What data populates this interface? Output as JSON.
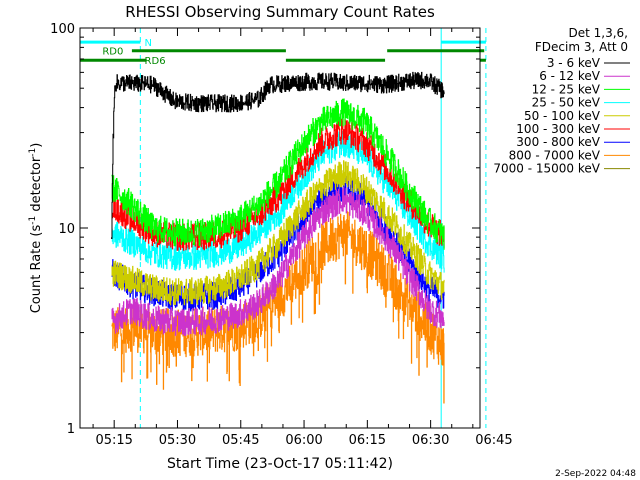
{
  "chart_data": {
    "type": "line",
    "title": "RHESSI Observing Summary Count Rates",
    "xlabel": "Start Time (23-Oct-17 05:11:42)",
    "ylabel_parts": [
      "Count Rate (s",
      "-1",
      " detector",
      "-1",
      ")"
    ],
    "x_range_minutes": [
      5.2,
      100.0
    ],
    "y_range": [
      1,
      100
    ],
    "y_scale": "log",
    "x_ticks": [
      {
        "minute": 13.3,
        "label": "05:15"
      },
      {
        "minute": 28.3,
        "label": "05:30"
      },
      {
        "minute": 43.3,
        "label": "05:45"
      },
      {
        "minute": 58.3,
        "label": "06:00"
      },
      {
        "minute": 73.3,
        "label": "06:15"
      },
      {
        "minute": 88.3,
        "label": "06:30"
      },
      {
        "minute": 103.3,
        "label": "06:45"
      }
    ],
    "y_ticks": [
      {
        "value": 1,
        "label": "1"
      },
      {
        "value": 10,
        "label": "10"
      },
      {
        "value": 100,
        "label": "100"
      }
    ],
    "legend_header": [
      "Det 1,3,6,",
      "FDecim 3, Att 0"
    ],
    "legend_position": "right",
    "series": [
      {
        "name": "3 - 6 keV",
        "color": "#000000",
        "x": [
          12.7,
          13.5,
          17.5,
          22.5,
          27.5,
          32.5,
          37.5,
          42.5,
          47.5,
          49.6,
          50,
          55,
          60,
          65,
          67,
          72.5,
          77.5,
          82.5,
          87.5,
          91.5
        ],
        "y": [
          9,
          53,
          53,
          52,
          43,
          42,
          42,
          42,
          44,
          50,
          52,
          53,
          54,
          54,
          53,
          53,
          52,
          54,
          55,
          48
        ]
      },
      {
        "name": "6 - 12 keV",
        "color": "#cc33cc",
        "x": [
          12.7,
          17.5,
          22.5,
          27.5,
          32.5,
          37.5,
          42.5,
          47.5,
          52.5,
          57.5,
          62.5,
          67.5,
          72.5,
          77.5,
          82.5,
          87.5,
          91.5
        ],
        "y": [
          3.4,
          3.9,
          3.5,
          3.4,
          3.4,
          3.5,
          3.7,
          4.2,
          5.5,
          8.5,
          12,
          14,
          12,
          9,
          6,
          4,
          3.5
        ]
      },
      {
        "name": "12 - 25 keV",
        "color": "#00ff00",
        "x": [
          12.7,
          17.5,
          22.5,
          27.5,
          32.5,
          37.5,
          42.5,
          47.5,
          52.5,
          57.5,
          62.5,
          67.5,
          72.5,
          77.5,
          82.5,
          87.5,
          91.5
        ],
        "y": [
          16,
          13,
          10,
          9.5,
          9.5,
          10,
          11,
          13,
          17,
          25,
          34,
          38,
          34,
          24,
          16,
          11,
          9
        ]
      },
      {
        "name": "25 - 50 keV",
        "color": "#00ffff",
        "x": [
          12.7,
          17.5,
          22.5,
          27.5,
          32.5,
          37.5,
          42.5,
          47.5,
          52.5,
          57.5,
          62.5,
          67.5,
          72.5,
          77.5,
          82.5,
          87.5,
          91.5
        ],
        "y": [
          9.5,
          8.5,
          7.5,
          7.2,
          7.2,
          7.5,
          8,
          9.5,
          12,
          17,
          23,
          27,
          23,
          17,
          12,
          8.5,
          7
        ]
      },
      {
        "name": "50 - 100 keV",
        "color": "#cccc00",
        "x": [
          12.7,
          17.5,
          22.5,
          27.5,
          32.5,
          37.5,
          42.5,
          47.5,
          52.5,
          57.5,
          62.5,
          67.5,
          72.5,
          77.5,
          82.5,
          87.5,
          91.5
        ],
        "y": [
          6,
          5.5,
          5,
          4.8,
          4.8,
          5,
          5.5,
          6.5,
          8.5,
          12,
          16,
          19,
          16,
          12,
          8.5,
          6,
          5
        ]
      },
      {
        "name": "100 - 300 keV",
        "color": "#ff0000",
        "x": [
          12.7,
          17.5,
          22.5,
          27.5,
          32.5,
          37.5,
          42.5,
          47.5,
          52.5,
          57.5,
          62.5,
          67.5,
          72.5,
          77.5,
          82.5,
          87.5,
          91.5
        ],
        "y": [
          13,
          11,
          9.5,
          9,
          9,
          9.2,
          9.8,
          11.5,
          14.5,
          20,
          27,
          31,
          27,
          20,
          14,
          10.5,
          9
        ]
      },
      {
        "name": "300 - 800 keV",
        "color": "#0000ff",
        "x": [
          12.7,
          17.5,
          22.5,
          27.5,
          32.5,
          37.5,
          42.5,
          47.5,
          52.5,
          57.5,
          62.5,
          67.5,
          72.5,
          77.5,
          82.5,
          87.5,
          91.5
        ],
        "y": [
          6,
          5.2,
          4.8,
          4.5,
          4.5,
          4.6,
          5,
          6,
          7.5,
          10.5,
          14,
          16,
          14,
          10,
          7,
          5,
          4.5
        ]
      },
      {
        "name": "800 - 7000 keV",
        "color": "#ff8800",
        "x": [
          12.7,
          17.5,
          22.5,
          27.5,
          32.5,
          37.5,
          42.5,
          47.5,
          52.5,
          57.5,
          62.5,
          67.5,
          72.5,
          77.5,
          82.5,
          87.5,
          91.5
        ],
        "y": [
          3,
          3.2,
          3,
          3,
          3,
          3.1,
          3.2,
          3.6,
          4.5,
          6,
          8,
          9.5,
          8,
          6,
          4.3,
          3.2,
          2.5
        ]
      },
      {
        "name": "7000 - 15000 keV",
        "color": "#888800",
        "x": [],
        "y": []
      }
    ],
    "vertical_lines": [
      {
        "minute": 5.2,
        "style": "solid",
        "color": "#00ffff"
      },
      {
        "minute": 19.5,
        "style": "dashed",
        "color": "#00ffff"
      },
      {
        "minute": 90.8,
        "style": "solid",
        "color": "#00ffff"
      },
      {
        "minute": 101.4,
        "style": "dashed",
        "color": "#00ffff"
      }
    ],
    "flag_bars": [
      {
        "label": "N",
        "color": "#00ffff",
        "y": 85,
        "segments": [
          [
            5.2,
            19.5
          ],
          [
            90.8,
            101.4
          ]
        ],
        "label_at": 20.5
      },
      {
        "label": "RD0",
        "color": "#008800",
        "y": 77,
        "segments": [
          [
            17.5,
            54
          ],
          [
            78,
            101
          ]
        ],
        "label_at": 10.5
      },
      {
        "label": "RD6",
        "color": "#008800",
        "y": 69,
        "segments": [
          [
            5.2,
            21
          ],
          [
            54,
            77.5
          ],
          [
            100,
            101.4
          ]
        ],
        "label_at": 20.5
      }
    ]
  },
  "footer": {
    "date": "2-Sep-2022 04:48"
  }
}
